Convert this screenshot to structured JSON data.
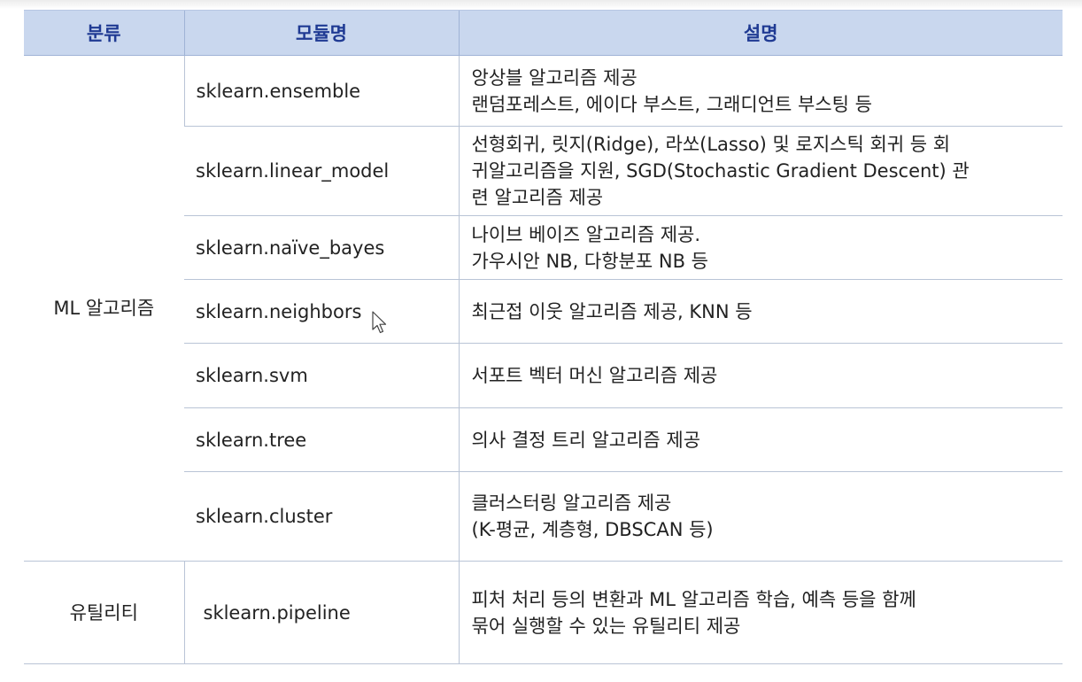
{
  "header": {
    "category": "분류",
    "module": "모듈명",
    "description": "설명"
  },
  "groups": [
    {
      "category": "ML 알고리즘",
      "rows": [
        {
          "module": "sklearn.ensemble",
          "description": [
            "앙상블 알고리즘 제공",
            "랜덤포레스트, 에이다 부스트, 그래디언트 부스팅 등"
          ]
        },
        {
          "module": "sklearn.linear_model",
          "description": [
            "선형회귀, 릿지(Ridge), 라쏘(Lasso) 및 로지스틱 회귀 등 회",
            "귀알고리즘을 지원, SGD(Stochastic Gradient Descent) 관",
            "련 알고리즘 제공"
          ]
        },
        {
          "module": "sklearn.naïve_bayes",
          "description": [
            "나이브 베이즈 알고리즘 제공.",
            "가우시안 NB, 다항분포 NB 등"
          ]
        },
        {
          "module": "sklearn.neighbors",
          "description": [
            "최근접 이웃 알고리즘 제공, KNN 등"
          ]
        },
        {
          "module": "sklearn.svm",
          "description": [
            "서포트 벡터 머신 알고리즘 제공"
          ]
        },
        {
          "module": "sklearn.tree",
          "description": [
            "의사 결정 트리 알고리즘 제공"
          ]
        },
        {
          "module": "sklearn.cluster",
          "description": [
            "클러스터링 알고리즘 제공",
            "(K-평균, 계층형, DBSCAN 등)"
          ]
        }
      ]
    },
    {
      "category": "유틸리티",
      "rows": [
        {
          "module": "sklearn.pipeline",
          "description": [
            "피처 처리 등의 변환과 ML 알고리즘 학습, 예측 등을 함께",
            "묶어 실행할 수 있는 유틸리티 제공"
          ]
        }
      ]
    }
  ],
  "colors": {
    "header_bg": "#c9d7ee",
    "header_text": "#1f3a93",
    "border": "#b9c4d6"
  },
  "icons": {
    "cursor": "mouse-pointer-icon"
  }
}
